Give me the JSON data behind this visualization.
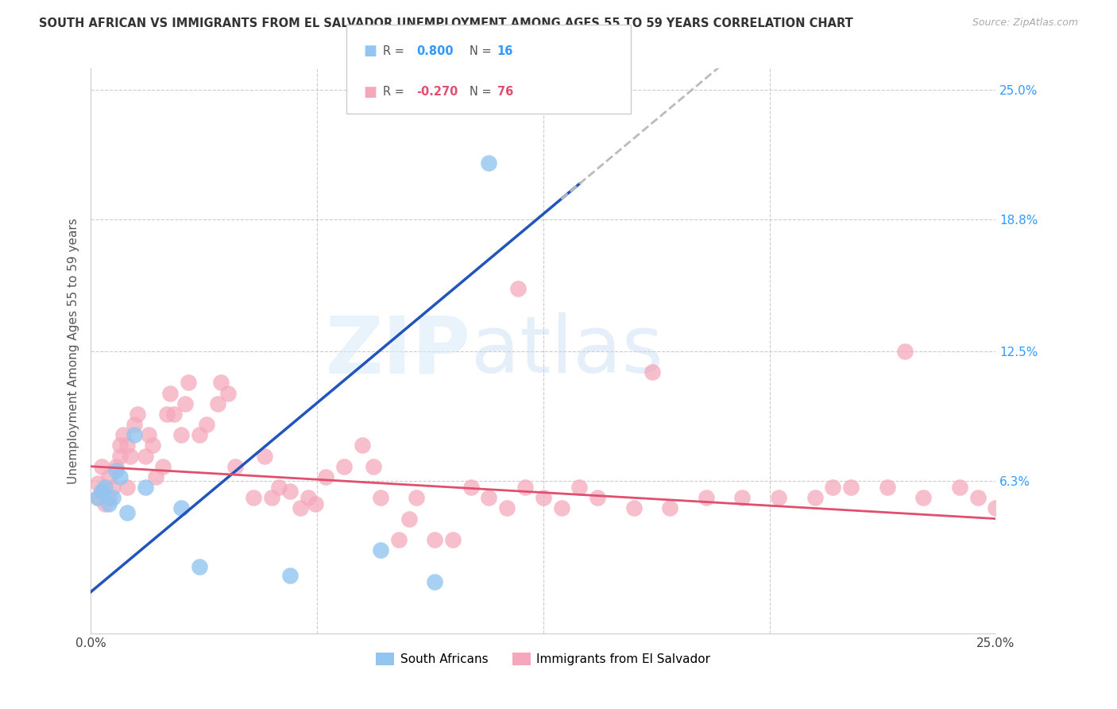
{
  "title": "SOUTH AFRICAN VS IMMIGRANTS FROM EL SALVADOR UNEMPLOYMENT AMONG AGES 55 TO 59 YEARS CORRELATION CHART",
  "source": "Source: ZipAtlas.com",
  "ylabel": "Unemployment Among Ages 55 to 59 years",
  "xlim": [
    0.0,
    25.0
  ],
  "ylim": [
    -1.0,
    26.0
  ],
  "r_blue": "0.800",
  "n_blue": "16",
  "r_pink": "-0.270",
  "n_pink": "76",
  "legend_label_blue": "South Africans",
  "legend_label_pink": "Immigrants from El Salvador",
  "blue_color": "#92C5F0",
  "pink_color": "#F5A8BC",
  "blue_line_color": "#2255BB",
  "pink_line_color": "#E0506E",
  "dashed_line_color": "#BBBBBB",
  "watermark_zip": "ZIP",
  "watermark_atlas": "atlas",
  "blue_line_x0": 0.0,
  "blue_line_y0": 1.0,
  "blue_line_x1": 13.5,
  "blue_line_y1": 20.5,
  "blue_line_solid_end": 13.5,
  "blue_line_dash_start": 13.0,
  "blue_line_dash_end": 25.0,
  "pink_line_x0": 0.0,
  "pink_line_y0": 7.0,
  "pink_line_x1": 25.0,
  "pink_line_y1": 4.5,
  "blue_scatter_x": [
    0.2,
    0.3,
    0.4,
    0.5,
    0.6,
    0.7,
    0.8,
    1.0,
    1.2,
    1.5,
    2.5,
    3.0,
    5.5,
    8.0,
    9.5,
    11.0
  ],
  "blue_scatter_y": [
    5.5,
    5.8,
    6.0,
    5.2,
    5.5,
    6.8,
    6.5,
    4.8,
    8.5,
    6.0,
    5.0,
    2.2,
    1.8,
    3.0,
    1.5,
    21.5
  ],
  "pink_scatter_x": [
    0.2,
    0.2,
    0.3,
    0.3,
    0.4,
    0.5,
    0.5,
    0.6,
    0.7,
    0.8,
    0.8,
    0.9,
    1.0,
    1.0,
    1.1,
    1.2,
    1.3,
    1.5,
    1.6,
    1.7,
    1.8,
    2.0,
    2.1,
    2.2,
    2.3,
    2.5,
    2.6,
    2.7,
    3.0,
    3.2,
    3.5,
    3.6,
    4.0,
    4.5,
    5.0,
    5.2,
    5.5,
    6.0,
    6.5,
    7.0,
    7.5,
    8.0,
    8.5,
    9.0,
    9.5,
    10.0,
    10.5,
    11.0,
    11.5,
    12.0,
    12.5,
    13.0,
    13.5,
    14.0,
    15.0,
    16.0,
    17.0,
    18.0,
    19.0,
    20.0,
    20.5,
    21.0,
    22.0,
    23.0,
    24.0,
    24.5,
    25.0,
    15.5,
    5.8,
    7.8,
    8.8,
    22.5,
    11.8,
    4.8,
    3.8,
    6.2
  ],
  "pink_scatter_y": [
    5.5,
    6.2,
    5.8,
    7.0,
    5.2,
    5.5,
    6.5,
    6.0,
    7.0,
    7.5,
    8.0,
    8.5,
    6.0,
    8.0,
    7.5,
    9.0,
    9.5,
    7.5,
    8.5,
    8.0,
    6.5,
    7.0,
    9.5,
    10.5,
    9.5,
    8.5,
    10.0,
    11.0,
    8.5,
    9.0,
    10.0,
    11.0,
    7.0,
    5.5,
    5.5,
    6.0,
    5.8,
    5.5,
    6.5,
    7.0,
    8.0,
    5.5,
    3.5,
    5.5,
    3.5,
    3.5,
    6.0,
    5.5,
    5.0,
    6.0,
    5.5,
    5.0,
    6.0,
    5.5,
    5.0,
    5.0,
    5.5,
    5.5,
    5.5,
    5.5,
    6.0,
    6.0,
    6.0,
    5.5,
    6.0,
    5.5,
    5.0,
    11.5,
    5.0,
    7.0,
    4.5,
    12.5,
    15.5,
    7.5,
    10.5,
    5.2
  ]
}
